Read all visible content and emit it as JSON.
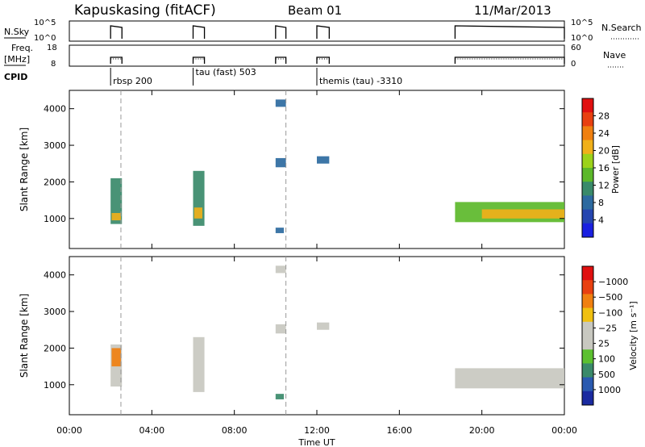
{
  "header": {
    "station": "Kapuskasing (fitACF)",
    "beam": "Beam 01",
    "date": "11/Mar/2013"
  },
  "strip_labels": {
    "nsky": "N.Sky",
    "nsky_ticks": [
      "10^5",
      "10^0"
    ],
    "nsearch": "N.Search",
    "nsearch_ticks": [
      "10^5",
      "10^0"
    ],
    "freq": "Freq.",
    "freq_unit": "[MHz]",
    "freq_ticks": [
      "18",
      "8"
    ],
    "nave": "Nave",
    "nave_ticks": [
      "60",
      "0"
    ],
    "cpid": "CPID"
  },
  "cpid_events": [
    {
      "time": 2.0,
      "label": "rbsp 200"
    },
    {
      "time": 6.0,
      "label": "tau (fast) 503"
    },
    {
      "time": 12.0,
      "label": "themis (tau) -3310"
    }
  ],
  "chart_data": [
    {
      "type": "heatmap",
      "name": "power",
      "ylabel": "Slant Range [km]",
      "xlabel": "Time UT",
      "xlim": [
        0,
        24
      ],
      "ylim": [
        180,
        4500
      ],
      "x_ticks": [
        "00:00",
        "04:00",
        "08:00",
        "12:00",
        "16:00",
        "20:00",
        "00:00"
      ],
      "y_ticks": [
        1000,
        2000,
        3000,
        4000
      ],
      "colorbar": {
        "label": "Power [dB]",
        "ticks": [
          4,
          8,
          12,
          16,
          20,
          24,
          28
        ],
        "colors": [
          "#1a20e0",
          "#2545b0",
          "#2d6aa0",
          "#3a8a6a",
          "#5cb82a",
          "#9cd21a",
          "#f0b01a",
          "#f08010",
          "#e84010",
          "#e01010"
        ]
      },
      "dashed_times": [
        2.5,
        10.5
      ],
      "blocks": [
        {
          "t0": 2.0,
          "t1": 2.55,
          "r0": 850,
          "r1": 2100,
          "power": 10
        },
        {
          "t0": 2.05,
          "t1": 2.5,
          "r0": 950,
          "r1": 1150,
          "power": 20
        },
        {
          "t0": 6.0,
          "t1": 6.55,
          "r0": 800,
          "r1": 2300,
          "power": 10
        },
        {
          "t0": 6.05,
          "t1": 6.45,
          "r0": 1000,
          "r1": 1300,
          "power": 18
        },
        {
          "t0": 10.0,
          "t1": 10.5,
          "r0": 4050,
          "r1": 4250,
          "power": 6
        },
        {
          "t0": 10.0,
          "t1": 10.5,
          "r0": 2400,
          "r1": 2650,
          "power": 8
        },
        {
          "t0": 10.0,
          "t1": 10.4,
          "r0": 600,
          "r1": 750,
          "power": 6
        },
        {
          "t0": 12.0,
          "t1": 12.6,
          "r0": 2500,
          "r1": 2700,
          "power": 6
        },
        {
          "t0": 18.7,
          "t1": 24.0,
          "r0": 900,
          "r1": 1450,
          "power": 12
        },
        {
          "t0": 20.0,
          "t1": 24.0,
          "r0": 1000,
          "r1": 1250,
          "power": 20
        }
      ]
    },
    {
      "type": "heatmap",
      "name": "velocity",
      "ylabel": "Slant Range [km]",
      "xlabel": "Time UT",
      "xlim": [
        0,
        24
      ],
      "ylim": [
        180,
        4500
      ],
      "x_ticks": [
        "00:00",
        "04:00",
        "08:00",
        "12:00",
        "16:00",
        "20:00",
        "00:00"
      ],
      "y_ticks": [
        1000,
        2000,
        3000,
        4000
      ],
      "colorbar": {
        "label": "Velocity [m s⁻¹]",
        "ticks": [
          "1000",
          "500",
          "100",
          "25",
          "−25",
          "−100",
          "−500",
          "−1000"
        ],
        "colors": [
          "#1a2aa0",
          "#2a5ab0",
          "#3a8a6a",
          "#5cc030",
          "#c8c8c0",
          "#c8c8c0",
          "#f0c010",
          "#f08010",
          "#e84010",
          "#e01010"
        ]
      },
      "dashed_times": [
        2.5,
        10.5
      ],
      "blocks": [
        {
          "t0": 2.0,
          "t1": 2.55,
          "r0": 950,
          "r1": 2100,
          "velocity": 0
        },
        {
          "t0": 2.05,
          "t1": 2.5,
          "r0": 1500,
          "r1": 2000,
          "velocity": -300
        },
        {
          "t0": 6.0,
          "t1": 6.55,
          "r0": 800,
          "r1": 2300,
          "velocity": 0
        },
        {
          "t0": 10.0,
          "t1": 10.5,
          "r0": 4050,
          "r1": 4250,
          "velocity": 0
        },
        {
          "t0": 10.0,
          "t1": 10.5,
          "r0": 2400,
          "r1": 2650,
          "velocity": 0
        },
        {
          "t0": 10.0,
          "t1": 10.4,
          "r0": 600,
          "r1": 750,
          "velocity": 200
        },
        {
          "t0": 12.0,
          "t1": 12.6,
          "r0": 2500,
          "r1": 2700,
          "velocity": 0
        },
        {
          "t0": 18.7,
          "t1": 24.0,
          "r0": 900,
          "r1": 1450,
          "velocity": 0
        }
      ]
    }
  ]
}
